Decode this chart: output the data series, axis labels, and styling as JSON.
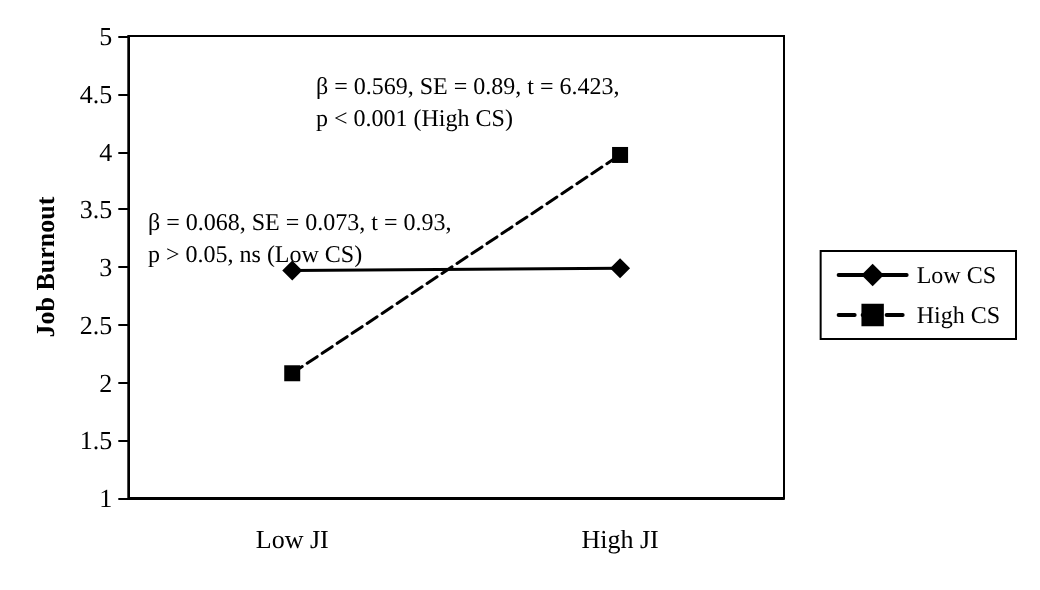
{
  "chart_data": {
    "type": "line",
    "ylabel": "Job Burnout",
    "categories": [
      "Low JI",
      "High JI"
    ],
    "series": [
      {
        "name": "Low CS",
        "color": "#000000",
        "values": [
          2.97,
          2.99
        ],
        "marker": "diamond",
        "line_style": "solid"
      },
      {
        "name": "High CS",
        "color": "#000000",
        "values": [
          2.08,
          3.97
        ],
        "marker": "square",
        "line_style": "dashed"
      }
    ],
    "ylim": [
      1,
      5
    ],
    "yticks": [
      1,
      1.5,
      2,
      2.5,
      3,
      3.5,
      4,
      4.5,
      5
    ],
    "grid": false,
    "legend": "right",
    "annotations": [
      "β = 0.569, SE = 0.89, t = 6.423,\np < 0.001 (High CS)",
      "β = 0.068, SE = 0.073, t = 0.93,\np > 0.05, ns (Low CS)"
    ]
  }
}
